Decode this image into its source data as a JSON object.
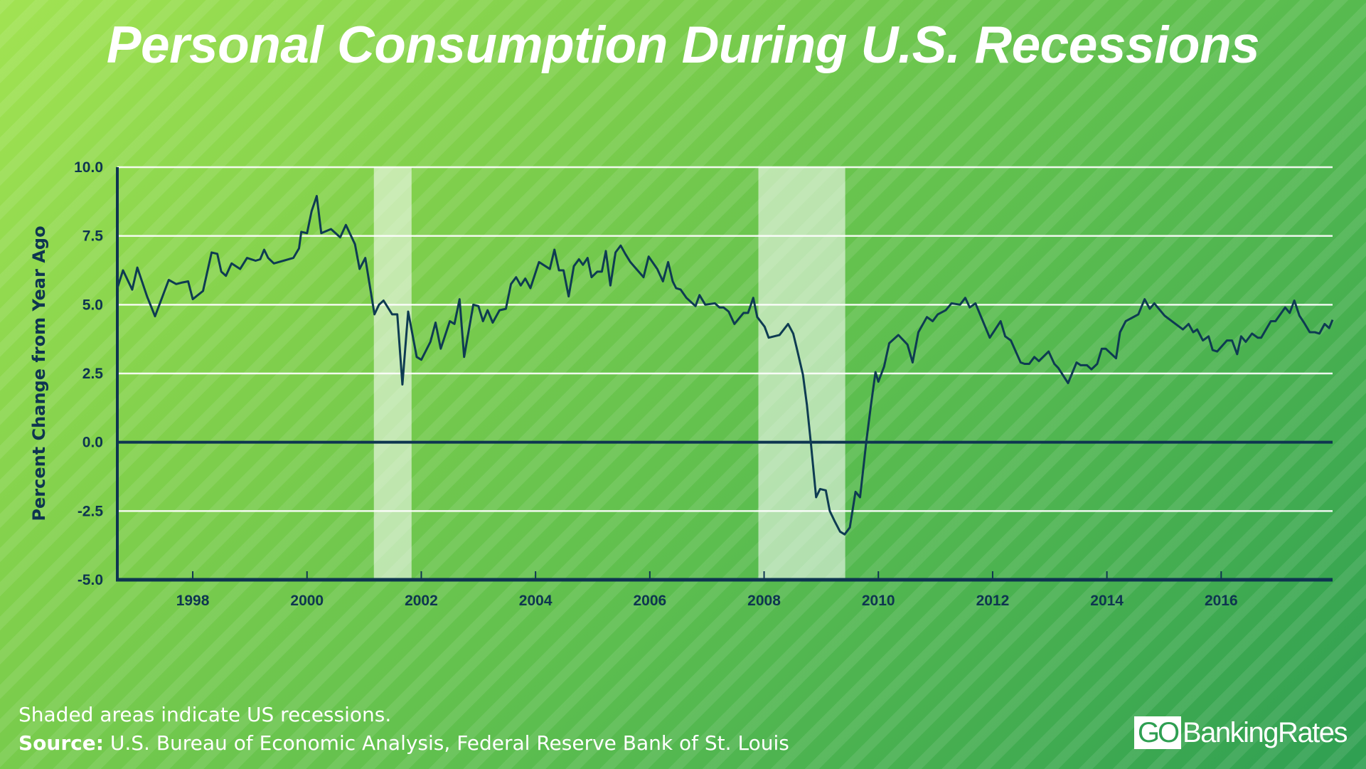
{
  "title": "Personal Consumption During U.S. Recessions",
  "footer": {
    "note": "Shaded areas indicate US recessions.",
    "source_label": "Source:",
    "source_text": "U.S. Bureau of Economic Analysis, Federal Reserve Bank of St. Louis"
  },
  "logo": {
    "go": "GO",
    "text": "BankingRates"
  },
  "colors": {
    "line": "#0e3b52",
    "axis": "#0e3550",
    "grid": "#ffffff",
    "recession_shade": "rgba(255,255,255,0.55)",
    "text": "#0e3550"
  },
  "chart_data": {
    "type": "line",
    "title": "Personal Consumption During U.S. Recessions",
    "xlabel": "",
    "ylabel": "Percent Change from Year Ago",
    "xlim": [
      1996.68,
      2017.95
    ],
    "ylim": [
      -5.0,
      10.0
    ],
    "grid": true,
    "yticks": [
      "10.0",
      "7.5",
      "5.0",
      "2.5",
      "0.0",
      "-2.5",
      "-5.0"
    ],
    "xticks": [
      "1998",
      "2000",
      "2002",
      "2004",
      "2006",
      "2008",
      "2010",
      "2012",
      "2014",
      "2016"
    ],
    "recessions": [
      [
        2001.17,
        2001.83
      ],
      [
        2007.9,
        2009.42
      ]
    ],
    "series": [
      {
        "x": [
          1996.68,
          1996.78,
          1996.94,
          1997.03,
          1997.2,
          1997.34,
          1997.58,
          1997.71,
          1997.8,
          1997.92,
          1998.0,
          1998.18,
          1998.33,
          1998.43,
          1998.5,
          1998.58,
          1998.68,
          1998.83,
          1998.95,
          1999.1,
          1999.18,
          1999.25,
          1999.32,
          1999.42,
          1999.76,
          1999.86,
          1999.9,
          2000.0,
          2000.08,
          2000.17,
          2000.25,
          2000.42,
          2000.58,
          2000.68,
          2000.84,
          2000.92,
          2001.02,
          2001.18,
          2001.26,
          2001.34,
          2001.49,
          2001.58,
          2001.67,
          2001.77,
          2001.92,
          2002.0,
          2002.16,
          2002.25,
          2002.34,
          2002.5,
          2002.58,
          2002.67,
          2002.75,
          2002.91,
          2003.0,
          2003.08,
          2003.16,
          2003.25,
          2003.37,
          2003.48,
          2003.57,
          2003.66,
          2003.74,
          2003.82,
          2003.91,
          2004.06,
          2004.25,
          2004.33,
          2004.41,
          2004.49,
          2004.58,
          2004.67,
          2004.76,
          2004.83,
          2004.91,
          2004.98,
          2005.08,
          2005.16,
          2005.23,
          2005.31,
          2005.4,
          2005.49,
          2005.57,
          2005.66,
          2005.89,
          2005.98,
          2006.13,
          2006.23,
          2006.32,
          2006.4,
          2006.46,
          2006.54,
          2006.64,
          2006.8,
          2006.87,
          2006.97,
          2007.14,
          2007.22,
          2007.29,
          2007.38,
          2007.48,
          2007.64,
          2007.72,
          2007.81,
          2007.88,
          2008.01,
          2008.08,
          2008.27,
          2008.42,
          2008.51,
          2008.58,
          2008.68,
          2008.75,
          2008.82,
          2008.91,
          2008.98,
          2009.08,
          2009.15,
          2009.23,
          2009.33,
          2009.41,
          2009.5,
          2009.6,
          2009.68,
          2009.79,
          2009.87,
          2009.95,
          2010.0,
          2010.1,
          2010.19,
          2010.35,
          2010.51,
          2010.6,
          2010.7,
          2010.85,
          2010.95,
          2011.04,
          2011.18,
          2011.28,
          2011.43,
          2011.52,
          2011.6,
          2011.7,
          2011.95,
          2012.14,
          2012.22,
          2012.32,
          2012.49,
          2012.56,
          2012.64,
          2012.73,
          2012.81,
          2012.98,
          2013.08,
          2013.15,
          2013.32,
          2013.47,
          2013.54,
          2013.65,
          2013.73,
          2013.83,
          2013.91,
          2013.98,
          2014.16,
          2014.23,
          2014.33,
          2014.55,
          2014.66,
          2014.75,
          2014.83,
          2015.01,
          2015.33,
          2015.43,
          2015.51,
          2015.58,
          2015.68,
          2015.78,
          2015.85,
          2015.93,
          2016.1,
          2016.19,
          2016.28,
          2016.35,
          2016.43,
          2016.54,
          2016.64,
          2016.7,
          2016.87,
          2016.95,
          2017.12,
          2017.2,
          2017.28,
          2017.37,
          2017.45,
          2017.55,
          2017.64,
          2017.72,
          2017.81,
          2017.89,
          2017.95
        ],
        "y": [
          5.6,
          6.25,
          5.55,
          6.35,
          5.3,
          4.58,
          5.9,
          5.75,
          5.8,
          5.85,
          5.2,
          5.5,
          6.9,
          6.85,
          6.2,
          6.05,
          6.5,
          6.3,
          6.7,
          6.6,
          6.65,
          7.0,
          6.7,
          6.5,
          6.7,
          7.05,
          7.65,
          7.6,
          8.4,
          8.95,
          7.6,
          7.75,
          7.45,
          7.9,
          7.2,
          6.3,
          6.7,
          4.65,
          5.0,
          5.15,
          4.65,
          4.65,
          2.1,
          4.75,
          3.1,
          3.0,
          3.65,
          4.35,
          3.4,
          4.4,
          4.3,
          5.2,
          3.1,
          5.0,
          4.95,
          4.4,
          4.8,
          4.35,
          4.8,
          4.85,
          5.75,
          6.0,
          5.7,
          5.95,
          5.6,
          6.55,
          6.3,
          7.0,
          6.25,
          6.25,
          5.3,
          6.4,
          6.65,
          6.45,
          6.7,
          6.0,
          6.2,
          6.2,
          6.95,
          5.7,
          6.9,
          7.15,
          6.85,
          6.55,
          6.0,
          6.75,
          6.3,
          5.85,
          6.55,
          5.85,
          5.6,
          5.55,
          5.25,
          4.95,
          5.35,
          5.0,
          5.05,
          4.9,
          4.9,
          4.75,
          4.3,
          4.7,
          4.7,
          5.25,
          4.55,
          4.2,
          3.8,
          3.9,
          4.3,
          3.95,
          3.35,
          2.45,
          1.35,
          -0.05,
          -2.0,
          -1.7,
          -1.75,
          -2.5,
          -2.85,
          -3.25,
          -3.35,
          -3.1,
          -1.8,
          -2.0,
          0.05,
          1.35,
          2.55,
          2.2,
          2.75,
          3.6,
          3.9,
          3.55,
          2.9,
          4.0,
          4.55,
          4.4,
          4.65,
          4.8,
          5.05,
          5.0,
          5.25,
          4.9,
          5.05,
          3.8,
          4.4,
          3.85,
          3.7,
          2.9,
          2.85,
          2.85,
          3.1,
          2.95,
          3.3,
          2.85,
          2.7,
          2.15,
          2.9,
          2.8,
          2.8,
          2.65,
          2.85,
          3.4,
          3.4,
          3.05,
          4.0,
          4.4,
          4.65,
          5.2,
          4.85,
          5.05,
          4.6,
          4.1,
          4.3,
          4.0,
          4.1,
          3.7,
          3.85,
          3.35,
          3.3,
          3.7,
          3.7,
          3.2,
          3.85,
          3.65,
          3.95,
          3.8,
          3.8,
          4.4,
          4.4,
          4.9,
          4.7,
          5.15,
          4.6,
          4.35,
          4.0,
          4.0,
          3.95,
          4.3,
          4.15,
          4.45
        ]
      }
    ]
  }
}
